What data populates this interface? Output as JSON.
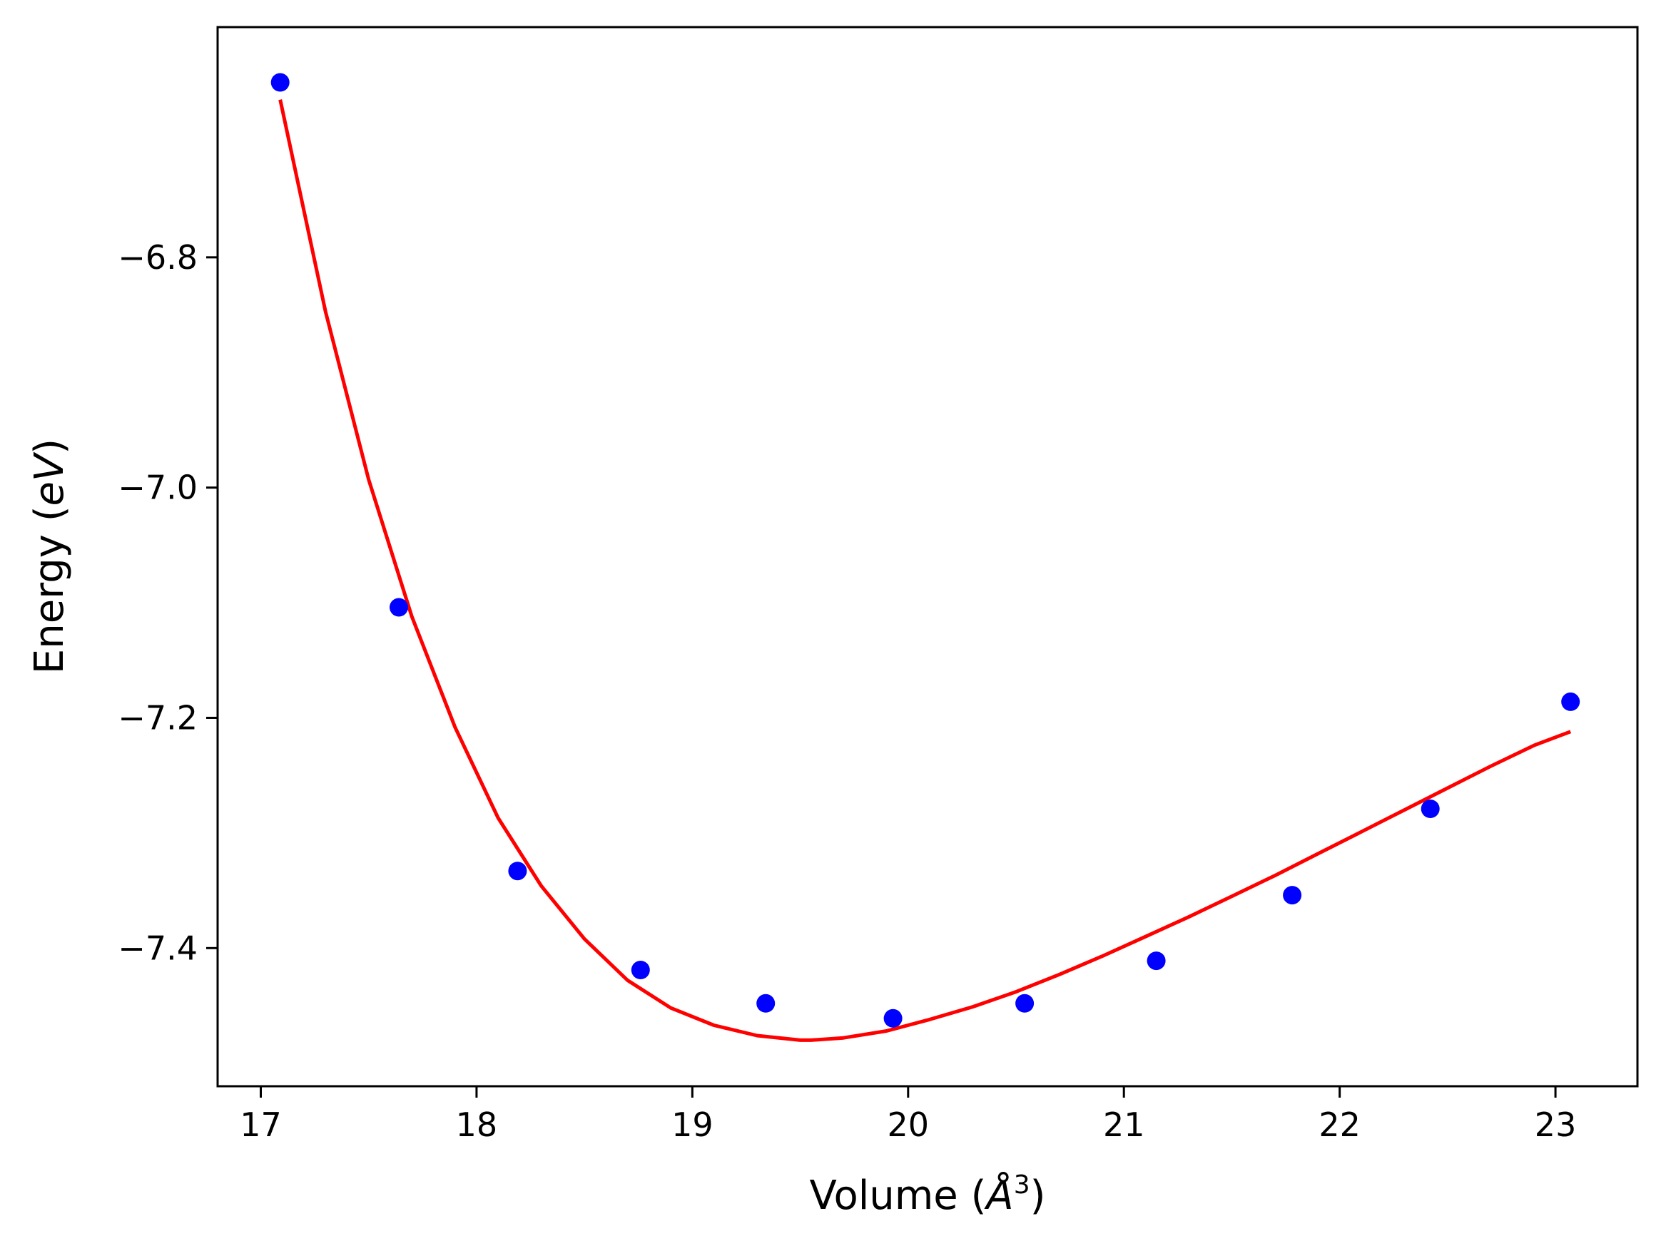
{
  "chart_data": {
    "type": "scatter",
    "title": "",
    "xlabel": {
      "prefix": "Volume (",
      "unit": "Å",
      "sup": "3",
      "suffix": ")"
    },
    "ylabel": {
      "prefix": "Energy (",
      "unit": "eV",
      "suffix": ")"
    },
    "xlim": [
      16.8,
      23.38
    ],
    "ylim": [
      -7.52,
      -6.6
    ],
    "xticks": [
      17,
      18,
      19,
      20,
      21,
      22,
      23
    ],
    "xtick_labels": [
      "17",
      "18",
      "19",
      "20",
      "21",
      "22",
      "23"
    ],
    "yticks": [
      -6.8,
      -7.0,
      -7.2,
      -7.4
    ],
    "ytick_labels": [
      "−6.8",
      "−7.0",
      "−7.2",
      "−7.4"
    ],
    "grid": false,
    "colors": {
      "points": "#0000ff",
      "fit": "#ff0000",
      "axes": "#000000"
    },
    "series": [
      {
        "kind": "scatter",
        "x": [
          17.09,
          17.64,
          18.19,
          18.76,
          19.34,
          19.93,
          20.54,
          21.15,
          21.78,
          22.42,
          23.07
        ],
        "y": [
          -6.648,
          -7.104,
          -7.333,
          -7.419,
          -7.448,
          -7.461,
          -7.448,
          -7.411,
          -7.354,
          -7.279,
          -7.186
        ]
      },
      {
        "kind": "line",
        "x": [
          17.09,
          17.3,
          17.5,
          17.7,
          17.9,
          18.1,
          18.3,
          18.5,
          18.7,
          18.9,
          19.1,
          19.3,
          19.5,
          19.55,
          19.7,
          19.9,
          20.1,
          20.3,
          20.5,
          20.7,
          20.9,
          21.1,
          21.3,
          21.5,
          21.7,
          21.9,
          22.1,
          22.3,
          22.5,
          22.7,
          22.9,
          23.07
        ],
        "y": [
          -6.663,
          -6.847,
          -6.993,
          -7.112,
          -7.208,
          -7.287,
          -7.346,
          -7.392,
          -7.428,
          -7.452,
          -7.467,
          -7.476,
          -7.48,
          -7.48,
          -7.478,
          -7.472,
          -7.462,
          -7.451,
          -7.438,
          -7.423,
          -7.407,
          -7.39,
          -7.373,
          -7.355,
          -7.337,
          -7.318,
          -7.299,
          -7.28,
          -7.261,
          -7.242,
          -7.224,
          -7.212
        ]
      }
    ]
  }
}
